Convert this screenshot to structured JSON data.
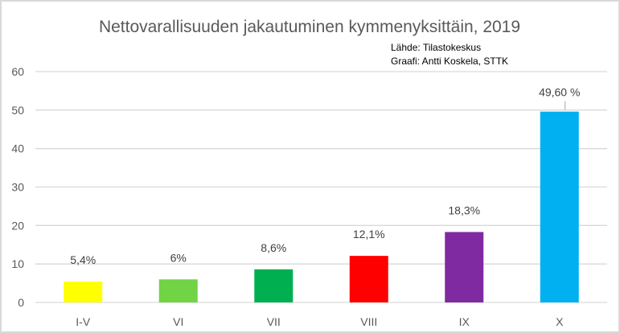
{
  "chart_data": {
    "type": "bar",
    "title": "Nettovarallisuuden jakautuminen kymmenyksittäin, 2019",
    "source_note": "Lähde: Tilastokeskus",
    "author_note": "Graafi: Antti Koskela, STTK",
    "categories": [
      "I-V",
      "VI",
      "VII",
      "VIII",
      "IX",
      "X"
    ],
    "values": [
      5.4,
      6,
      8.6,
      12.1,
      18.3,
      49.6
    ],
    "data_labels": [
      "5,4%",
      "6%",
      "8,6%",
      "12,1%",
      "18,3%",
      "49,60 %"
    ],
    "colors": [
      "#ffff00",
      "#70d444",
      "#00b050",
      "#ff0000",
      "#7f2aa0",
      "#00b0f0"
    ],
    "ylim": [
      0,
      60
    ],
    "yticks": [
      "0",
      "10",
      "20",
      "30",
      "40",
      "50",
      "60"
    ],
    "xlabel": "",
    "ylabel": "",
    "grid": true,
    "legend": "none"
  }
}
